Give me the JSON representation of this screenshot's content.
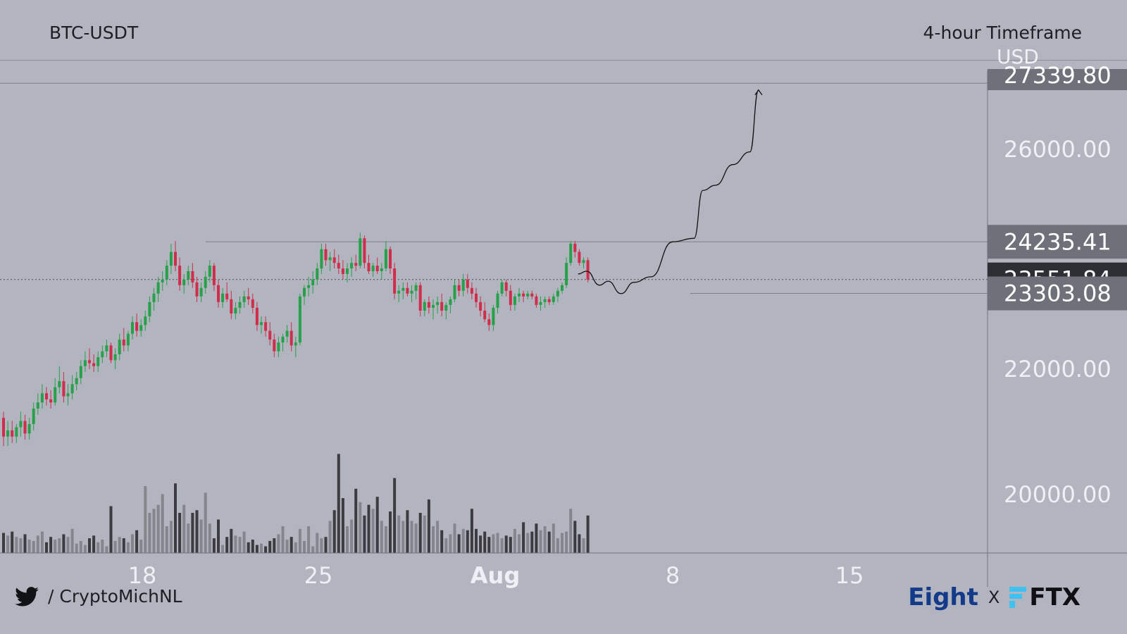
{
  "header": {
    "symbol": "BTC-USDT",
    "timeframe": "4-hour Timeframe"
  },
  "footer": {
    "handle": "/ CryptoMichNL",
    "brand_left": "Eight",
    "separator": "X",
    "brand_right": "FTX"
  },
  "colors": {
    "bull": "#27a04a",
    "bear": "#cf2d4b",
    "volume_dark": "#3b3b40",
    "volume_light": "#85868d",
    "label_bg": "#6f717a",
    "label_bg_dark": "#2e2f35",
    "ftx_cyan": "#3fc2f2"
  },
  "chart_data": {
    "type": "candlestick",
    "unit_label": "USD",
    "y_ticks": [
      "26000.00",
      "22000.00",
      "20000.00"
    ],
    "x_ticks": [
      "18",
      "25",
      "Aug",
      "8",
      "15"
    ],
    "price_labels": [
      {
        "value": 27339.8,
        "text": "27339.80",
        "style": "partial"
      },
      {
        "value": 24235.41,
        "text": "24235.41",
        "style": "normal"
      },
      {
        "value": 23551.84,
        "text": "23551.84",
        "style": "current"
      },
      {
        "value": 23303.08,
        "text": "23303.08",
        "style": "normal"
      }
    ],
    "horizontal_levels": [
      27339.8,
      24235.41,
      23303.08
    ],
    "current_price": 23551.84,
    "projection_path": [
      [
        23650,
        0
      ],
      [
        23700,
        2
      ],
      [
        23450,
        5
      ],
      [
        23520,
        7
      ],
      [
        23300,
        10
      ],
      [
        23500,
        13
      ],
      [
        23600,
        17
      ],
      [
        24235,
        22
      ],
      [
        24300,
        27
      ],
      [
        25200,
        29
      ],
      [
        25300,
        32
      ],
      [
        25700,
        36
      ],
      [
        25950,
        40
      ],
      [
        27200,
        42
      ]
    ],
    "candles": [
      [
        21200,
        21300,
        20750,
        20900
      ],
      [
        20900,
        21150,
        20750,
        21000
      ],
      [
        21000,
        21150,
        20800,
        20900
      ],
      [
        20900,
        21100,
        20800,
        21050
      ],
      [
        21050,
        21300,
        20900,
        21150
      ],
      [
        21150,
        21250,
        20850,
        20950
      ],
      [
        20950,
        21200,
        20850,
        21100
      ],
      [
        21100,
        21450,
        21000,
        21350
      ],
      [
        21350,
        21600,
        21250,
        21450
      ],
      [
        21450,
        21750,
        21350,
        21600
      ],
      [
        21600,
        21700,
        21400,
        21500
      ],
      [
        21500,
        21650,
        21350,
        21450
      ],
      [
        21450,
        21850,
        21400,
        21700
      ],
      [
        21700,
        22050,
        21600,
        21800
      ],
      [
        21800,
        21950,
        21450,
        21550
      ],
      [
        21550,
        21750,
        21400,
        21600
      ],
      [
        21600,
        21900,
        21500,
        21750
      ],
      [
        21750,
        21950,
        21650,
        21850
      ],
      [
        21850,
        22150,
        21750,
        22050
      ],
      [
        22050,
        22300,
        21950,
        22150
      ],
      [
        22150,
        22350,
        22000,
        22100
      ],
      [
        22100,
        22250,
        21950,
        22050
      ],
      [
        22050,
        22300,
        21950,
        22200
      ],
      [
        22200,
        22400,
        22100,
        22300
      ],
      [
        22300,
        22500,
        22200,
        22400
      ],
      [
        22400,
        22450,
        22100,
        22150
      ],
      [
        22150,
        22350,
        22000,
        22250
      ],
      [
        22250,
        22600,
        22150,
        22500
      ],
      [
        22500,
        22700,
        22300,
        22400
      ],
      [
        22400,
        22650,
        22300,
        22600
      ],
      [
        22600,
        22900,
        22500,
        22800
      ],
      [
        22800,
        22950,
        22550,
        22650
      ],
      [
        22650,
        22850,
        22550,
        22750
      ],
      [
        22750,
        23000,
        22650,
        22900
      ],
      [
        22900,
        23250,
        22800,
        23150
      ],
      [
        23150,
        23400,
        23000,
        23300
      ],
      [
        23300,
        23600,
        23150,
        23500
      ],
      [
        23500,
        23700,
        23350,
        23550
      ],
      [
        23550,
        23900,
        23450,
        23800
      ],
      [
        23800,
        24200,
        23650,
        24050
      ],
      [
        24050,
        24250,
        23700,
        23800
      ],
      [
        23800,
        23950,
        23350,
        23450
      ],
      [
        23450,
        23650,
        23300,
        23550
      ],
      [
        23550,
        23800,
        23450,
        23700
      ],
      [
        23700,
        23850,
        23400,
        23500
      ],
      [
        23500,
        23600,
        23150,
        23250
      ],
      [
        23250,
        23500,
        23150,
        23400
      ],
      [
        23400,
        23700,
        23300,
        23600
      ],
      [
        23600,
        23900,
        23500,
        23800
      ],
      [
        23800,
        23850,
        23350,
        23450
      ],
      [
        23450,
        23550,
        23050,
        23150
      ],
      [
        23150,
        23400,
        23050,
        23300
      ],
      [
        23300,
        23500,
        23150,
        23200
      ],
      [
        23200,
        23350,
        22850,
        22950
      ],
      [
        22950,
        23150,
        22850,
        23050
      ],
      [
        23050,
        23250,
        22950,
        23150
      ],
      [
        23150,
        23350,
        23050,
        23250
      ],
      [
        23250,
        23400,
        23100,
        23200
      ],
      [
        23200,
        23300,
        22950,
        23050
      ],
      [
        23050,
        23150,
        22650,
        22750
      ],
      [
        22750,
        22900,
        22600,
        22800
      ],
      [
        22800,
        22900,
        22550,
        22650
      ],
      [
        22650,
        22800,
        22400,
        22500
      ],
      [
        22500,
        22600,
        22200,
        22300
      ],
      [
        22300,
        22550,
        22200,
        22450
      ],
      [
        22450,
        22600,
        22300,
        22550
      ],
      [
        22550,
        22750,
        22450,
        22650
      ],
      [
        22650,
        22800,
        22300,
        22400
      ],
      [
        22400,
        22550,
        22200,
        22450
      ],
      [
        22450,
        23300,
        22400,
        23250
      ],
      [
        23250,
        23450,
        23100,
        23400
      ],
      [
        23400,
        23600,
        23250,
        23450
      ],
      [
        23450,
        23700,
        23300,
        23550
      ],
      [
        23550,
        23850,
        23450,
        23750
      ],
      [
        23750,
        24200,
        23650,
        24100
      ],
      [
        24100,
        24200,
        23800,
        23900
      ],
      [
        23900,
        24050,
        23700,
        23950
      ],
      [
        23950,
        24100,
        23750,
        23850
      ],
      [
        23850,
        24000,
        23650,
        23750
      ],
      [
        23750,
        23900,
        23550,
        23650
      ],
      [
        23650,
        23850,
        23500,
        23750
      ],
      [
        23750,
        23950,
        23600,
        23850
      ],
      [
        23850,
        24000,
        23700,
        23800
      ],
      [
        23800,
        24400,
        23750,
        24300
      ],
      [
        24300,
        24350,
        23750,
        23850
      ],
      [
        23850,
        24000,
        23650,
        23700
      ],
      [
        23700,
        23850,
        23600,
        23800
      ],
      [
        23800,
        23950,
        23650,
        23700
      ],
      [
        23700,
        23850,
        23550,
        23750
      ],
      [
        23750,
        24250,
        23700,
        24100
      ],
      [
        24100,
        24150,
        23650,
        23750
      ],
      [
        23750,
        23850,
        23200,
        23300
      ],
      [
        23300,
        23450,
        23150,
        23350
      ],
      [
        23350,
        23500,
        23200,
        23400
      ],
      [
        23400,
        23500,
        23250,
        23300
      ],
      [
        23300,
        23450,
        23150,
        23350
      ],
      [
        23350,
        23500,
        23200,
        23450
      ],
      [
        23450,
        23500,
        22900,
        23000
      ],
      [
        23000,
        23200,
        22900,
        23150
      ],
      [
        23150,
        23250,
        22950,
        23050
      ],
      [
        23050,
        23200,
        22850,
        23100
      ],
      [
        23100,
        23250,
        22950,
        23150
      ],
      [
        23150,
        23300,
        22900,
        23000
      ],
      [
        23000,
        23150,
        22850,
        23100
      ],
      [
        23100,
        23250,
        22950,
        23200
      ],
      [
        23200,
        23550,
        23150,
        23450
      ],
      [
        23450,
        23550,
        23250,
        23350
      ],
      [
        23350,
        23650,
        23250,
        23550
      ],
      [
        23550,
        23650,
        23300,
        23400
      ],
      [
        23400,
        23500,
        23200,
        23300
      ],
      [
        23300,
        23400,
        23050,
        23150
      ],
      [
        23150,
        23250,
        22900,
        23000
      ],
      [
        23000,
        23150,
        22800,
        22850
      ],
      [
        22850,
        22950,
        22650,
        22750
      ],
      [
        22750,
        23100,
        22650,
        23050
      ],
      [
        23050,
        23350,
        22950,
        23300
      ],
      [
        23300,
        23550,
        23250,
        23500
      ],
      [
        23500,
        23550,
        23250,
        23350
      ],
      [
        23350,
        23450,
        23000,
        23100
      ],
      [
        23100,
        23300,
        23000,
        23250
      ],
      [
        23250,
        23400,
        23150,
        23300
      ],
      [
        23300,
        23350,
        23150,
        23250
      ],
      [
        23250,
        23350,
        23200,
        23300
      ],
      [
        23300,
        23350,
        23200,
        23250
      ],
      [
        23250,
        23300,
        23050,
        23100
      ],
      [
        23100,
        23250,
        23000,
        23150
      ],
      [
        23150,
        23250,
        23050,
        23200
      ],
      [
        23200,
        23250,
        23100,
        23150
      ],
      [
        23150,
        23300,
        23100,
        23250
      ],
      [
        23250,
        23400,
        23150,
        23350
      ],
      [
        23350,
        23500,
        23300,
        23450
      ],
      [
        23450,
        23950,
        23400,
        23850
      ],
      [
        23850,
        24250,
        23800,
        24200
      ],
      [
        24200,
        24250,
        23950,
        24050
      ],
      [
        24050,
        24100,
        23800,
        23850
      ],
      [
        23850,
        23950,
        23750,
        23900
      ],
      [
        23900,
        23950,
        23500,
        23550
      ]
    ],
    "volume": [
      0.15,
      0.13,
      0.16,
      0.12,
      0.11,
      0.14,
      0.1,
      0.09,
      0.13,
      0.16,
      0.08,
      0.12,
      0.1,
      0.11,
      0.14,
      0.12,
      0.18,
      0.07,
      0.09,
      0.06,
      0.11,
      0.13,
      0.08,
      0.1,
      0.05,
      0.35,
      0.09,
      0.12,
      0.11,
      0.08,
      0.14,
      0.17,
      0.1,
      0.5,
      0.3,
      0.33,
      0.36,
      0.44,
      0.2,
      0.24,
      0.52,
      0.3,
      0.36,
      0.22,
      0.3,
      0.32,
      0.25,
      0.45,
      0.22,
      0.11,
      0.25,
      0.06,
      0.12,
      0.18,
      0.13,
      0.12,
      0.16,
      0.08,
      0.1,
      0.06,
      0.07,
      0.05,
      0.09,
      0.11,
      0.14,
      0.2,
      0.1,
      0.12,
      0.08,
      0.18,
      0.09,
      0.2,
      0.05,
      0.15,
      0.11,
      0.12,
      0.24,
      0.32,
      0.74,
      0.41,
      0.2,
      0.25,
      0.48,
      0.38,
      0.28,
      0.36,
      0.33,
      0.42,
      0.24,
      0.2,
      0.31,
      0.56,
      0.28,
      0.24,
      0.32,
      0.24,
      0.22,
      0.3,
      0.28,
      0.4,
      0.2,
      0.24,
      0.17,
      0.11,
      0.14,
      0.22,
      0.14,
      0.18,
      0.17,
      0.33,
      0.18,
      0.13,
      0.16,
      0.12,
      0.14,
      0.15,
      0.11,
      0.13,
      0.12,
      0.18,
      0.14,
      0.23,
      0.15,
      0.16,
      0.22,
      0.17,
      0.2,
      0.16,
      0.22,
      0.11,
      0.15,
      0.16,
      0.33,
      0.24,
      0.14,
      0.11,
      0.28
    ]
  }
}
